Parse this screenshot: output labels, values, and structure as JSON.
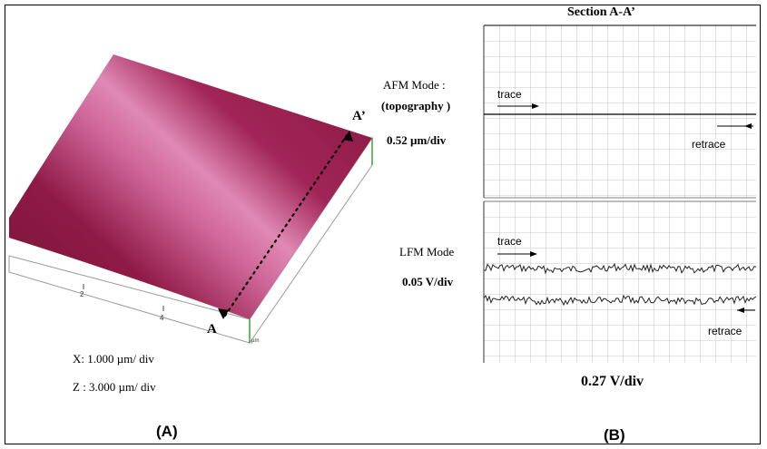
{
  "panel_a": {
    "label_a": "A",
    "label_a_prime": "A’",
    "axis_ticks": [
      "2",
      "4"
    ],
    "axis_unit": "µm",
    "x_scale": "X: 1.000 µm/ div",
    "z_scale": "Z : 3.000 µm/ div",
    "panel_label": "(A)",
    "surface_color": "#9a1c4e"
  },
  "panel_b": {
    "section_title": "Section A-A’",
    "afm_mode_label": "AFM Mode :",
    "afm_mode_sub": "(topography )",
    "afm_scale": "0.52 µm/div",
    "lfm_mode_label": "LFM Mode",
    "lfm_scale": "0.05  V/div",
    "trace_label": "trace",
    "retrace_label": "retrace",
    "bottom_scale": "0.27 V/div",
    "panel_label": "(B)"
  }
}
